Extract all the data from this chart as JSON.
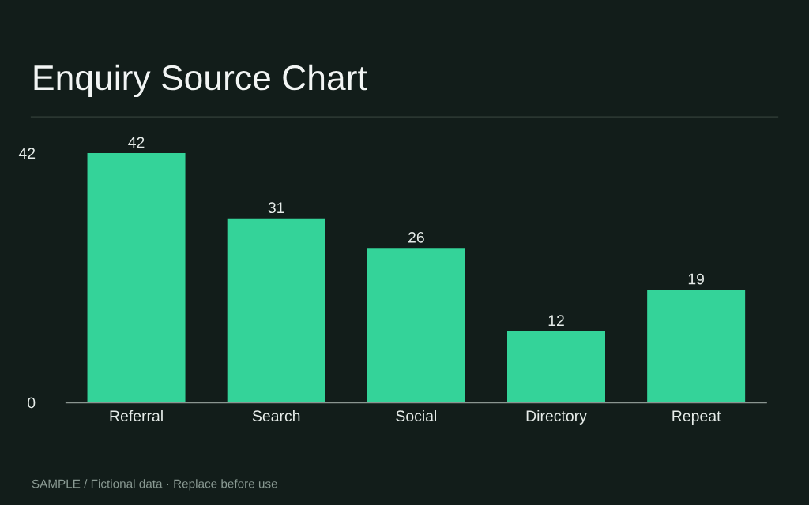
{
  "chart_data": {
    "type": "bar",
    "title": "Enquiry Source Chart",
    "categories": [
      "Referral",
      "Search",
      "Social",
      "Directory",
      "Repeat"
    ],
    "values": [
      42,
      31,
      26,
      12,
      19
    ],
    "color": "#34d399",
    "ylim": [
      0,
      42
    ],
    "yticks": [
      0,
      42
    ],
    "grid": false,
    "data_labels": true,
    "annotations": [
      "SAMPLE / Fictional data · Replace before use"
    ]
  }
}
